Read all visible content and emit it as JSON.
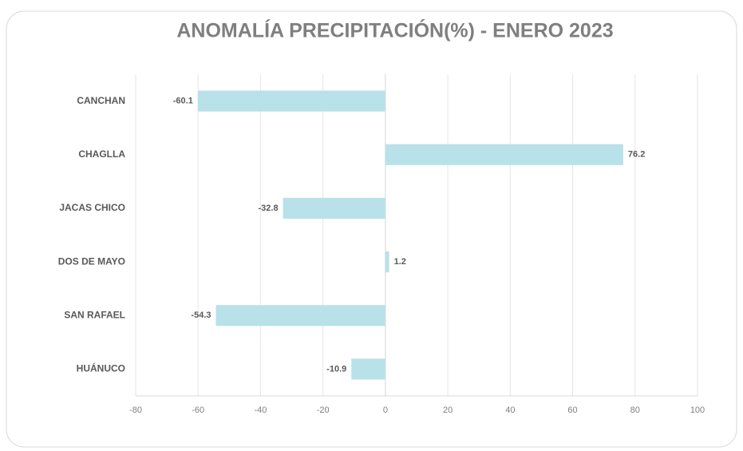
{
  "chart_data": {
    "type": "bar",
    "orientation": "horizontal",
    "title": "ANOMALÍA PRECIPITACIÓN(%) - ENERO 2023",
    "categories": [
      "CANCHAN",
      "CHAGLLA",
      "JACAS CHICO",
      "DOS DE MAYO",
      "SAN RAFAEL",
      "HUÁNUCO"
    ],
    "values": [
      -60.1,
      76.2,
      -32.8,
      1.2,
      -54.3,
      -10.9
    ],
    "color": "#b9e1ea",
    "xlim": [
      -80,
      100
    ],
    "xticks": [
      -80,
      -60,
      -40,
      -20,
      0,
      20,
      40,
      60,
      80,
      100
    ],
    "grid": true
  }
}
